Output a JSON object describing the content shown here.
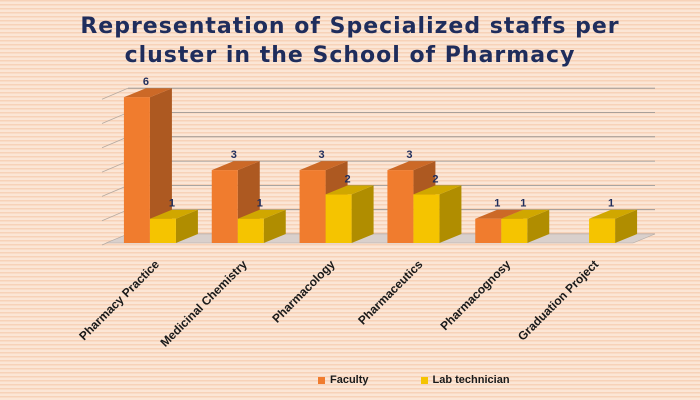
{
  "chart_data": {
    "type": "bar",
    "title": "Representation of Specialized staffs per cluster in the School of Pharmacy",
    "title_lines": [
      "Representation of Specialized staffs per",
      "cluster in the School of Pharmacy"
    ],
    "categories": [
      "Pharmacy Practice",
      "Medicinal Chemistry",
      "Pharmacology",
      "Pharmaceutics",
      "Pharmacognosy",
      "Graduation Project"
    ],
    "series": [
      {
        "name": "Faculty",
        "values": [
          6,
          3,
          3,
          3,
          1,
          null
        ],
        "color": "#f07c2e"
      },
      {
        "name": "Lab technician",
        "values": [
          1,
          1,
          2,
          2,
          1,
          1
        ],
        "color": "#f5c400"
      }
    ],
    "ylim": [
      0,
      6
    ],
    "grid": true,
    "legend_position": "bottom",
    "style": "3d-column",
    "background": "#f9dcc6"
  }
}
